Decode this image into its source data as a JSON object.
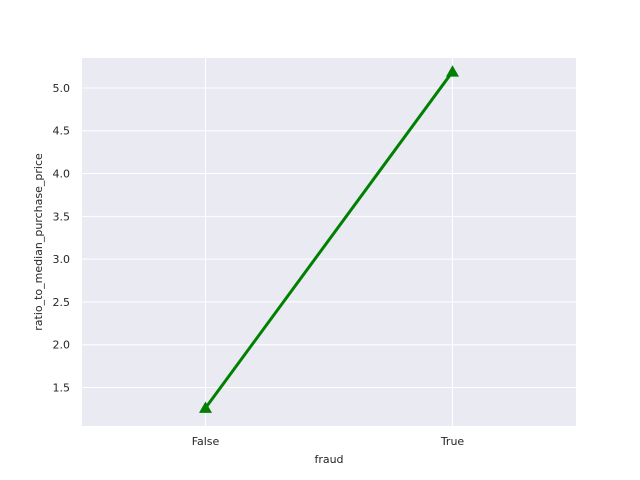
{
  "chart_data": {
    "type": "line",
    "xlabel": "fraud",
    "ylabel": "ratio_to_median_purchase_price",
    "categories": [
      "False",
      "True"
    ],
    "series": [
      {
        "values": [
          1.26,
          5.19
        ],
        "color": "#008000",
        "marker": "triangle-up"
      }
    ],
    "ylim": [
      1.05,
      5.35
    ],
    "yticks": [
      1.5,
      2.0,
      2.5,
      3.0,
      3.5,
      4.0,
      4.5,
      5.0
    ],
    "ytick_labels": [
      "1.5",
      "2.0",
      "2.5",
      "3.0",
      "3.5",
      "4.0",
      "4.5",
      "5.0"
    ],
    "grid": true,
    "background": "#eaeaf2",
    "grid_color": "#ffffff"
  }
}
